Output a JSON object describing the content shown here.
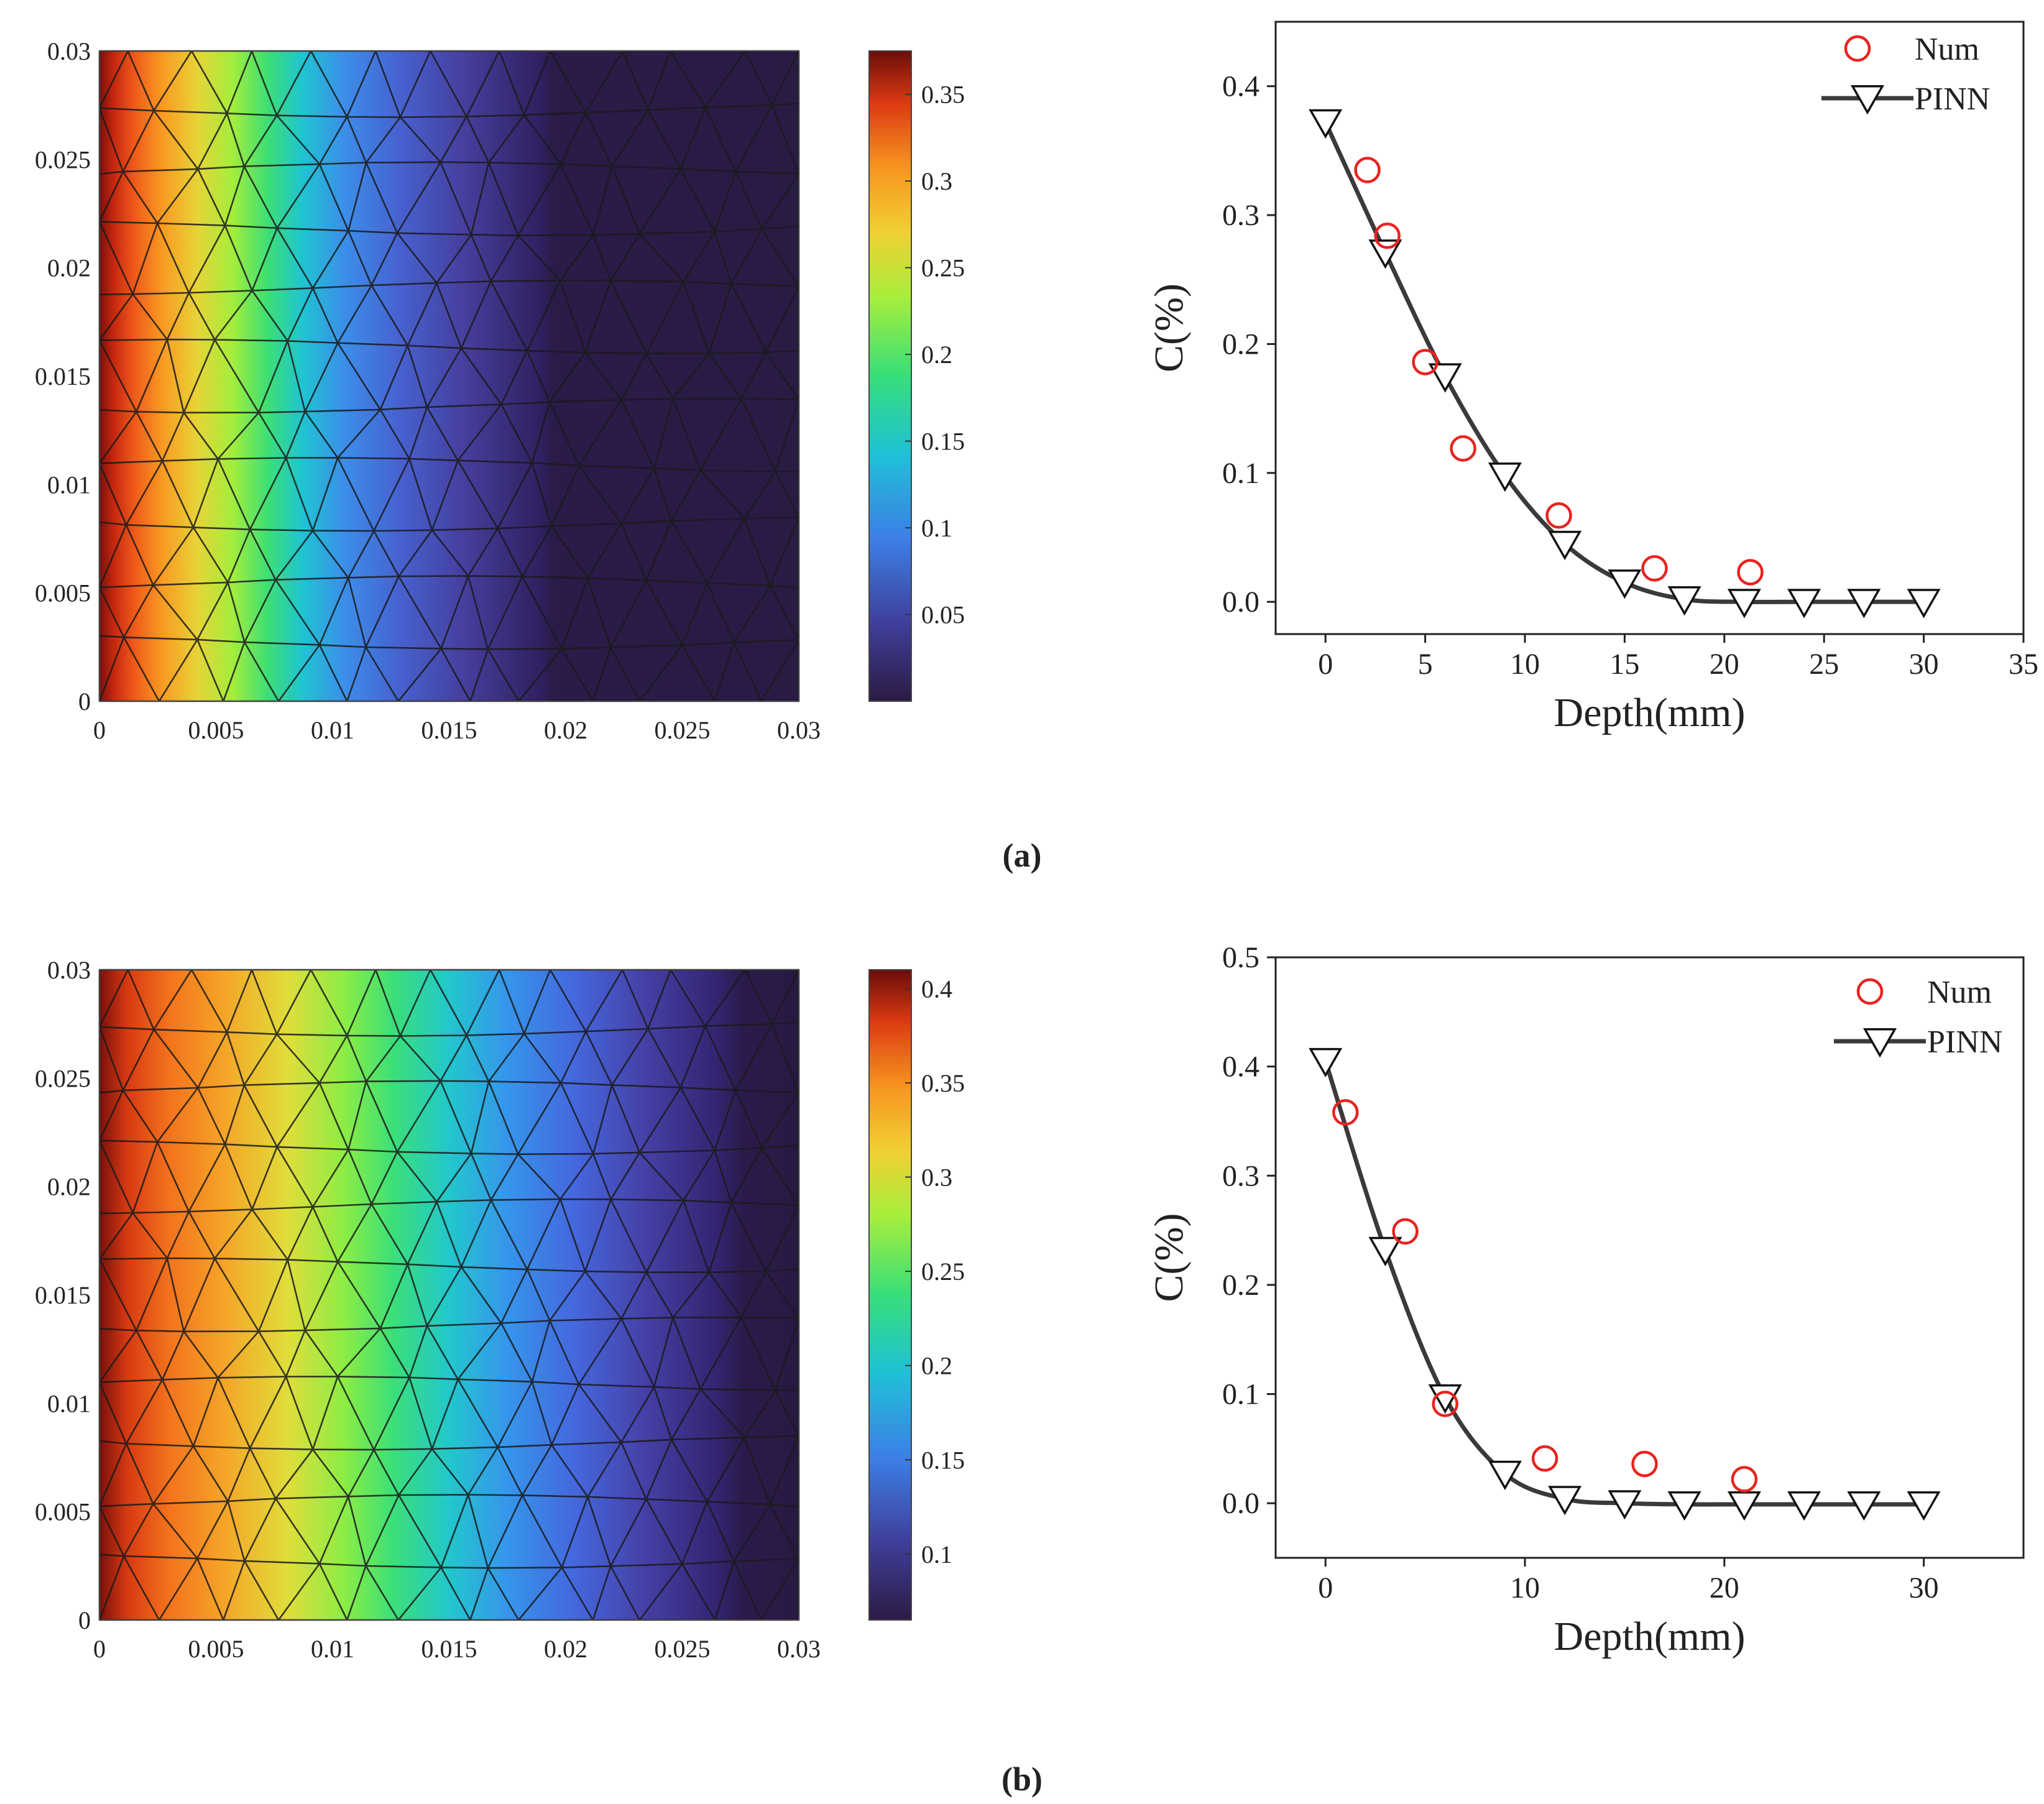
{
  "panel_labels": [
    "(a)",
    "(b)"
  ],
  "chart_data": [
    {
      "type": "heatmap",
      "panel": "a",
      "field": "left-to-right gradient, high at x=0, decaying to minimum near x=0.019",
      "xlim": [
        0,
        0.03
      ],
      "ylim": [
        0,
        0.03
      ],
      "xticks": [
        "0",
        "0.005",
        "0.01",
        "0.015",
        "0.02",
        "0.025",
        "0.03"
      ],
      "yticks": [
        "0",
        "0.005",
        "0.01",
        "0.015",
        "0.02",
        "0.025",
        "0.03"
      ],
      "colorbar": {
        "range": [
          0.0,
          0.375
        ],
        "ticks": [
          "0.05",
          "0.1",
          "0.15",
          "0.2",
          "0.25",
          "0.3",
          "0.35"
        ]
      },
      "mesh": "triangular",
      "grid": false
    },
    {
      "type": "scatter",
      "panel": "a",
      "xlabel": "Depth(mm)",
      "ylabel": "C(%)",
      "xlim": [
        -2.5,
        35
      ],
      "ylim": [
        -0.025,
        0.45
      ],
      "xticks": [
        "0",
        "5",
        "10",
        "15",
        "20",
        "25",
        "30",
        "35"
      ],
      "yticks": [
        "0.0",
        "0.1",
        "0.2",
        "0.3",
        "0.4"
      ],
      "legend": "top-right",
      "series": [
        {
          "name": "Num",
          "marker": "circle",
          "color": "#e8231f",
          "x": [
            2.1,
            3.1,
            5.0,
            6.9,
            11.7,
            16.5,
            21.3
          ],
          "y": [
            0.335,
            0.284,
            0.186,
            0.119,
            0.067,
            0.026,
            0.023
          ]
        },
        {
          "name": "PINN",
          "marker": "triangle-down",
          "color": "#333333",
          "line": true,
          "x": [
            0,
            3,
            6,
            9,
            12,
            15,
            18,
            21,
            24,
            27,
            30
          ],
          "y": [
            0.372,
            0.271,
            0.175,
            0.098,
            0.045,
            0.015,
            0.002,
            0.0,
            0.0,
            0.0,
            0.0
          ]
        }
      ],
      "grid": false
    },
    {
      "type": "heatmap",
      "panel": "b",
      "field": "left-to-right gradient, high at x=0, decaying to minimum near x=0.027",
      "xlim": [
        0,
        0.03
      ],
      "ylim": [
        0,
        0.03
      ],
      "xticks": [
        "0",
        "0.005",
        "0.01",
        "0.015",
        "0.02",
        "0.025",
        "0.03"
      ],
      "yticks": [
        "0",
        "0.005",
        "0.01",
        "0.015",
        "0.02",
        "0.025",
        "0.03"
      ],
      "colorbar": {
        "range": [
          0.065,
          0.41
        ],
        "ticks": [
          "0.1",
          "0.15",
          "0.2",
          "0.25",
          "0.3",
          "0.35",
          "0.4"
        ]
      },
      "mesh": "triangular",
      "grid": false
    },
    {
      "type": "scatter",
      "panel": "b",
      "xlabel": "Depth(mm)",
      "ylabel": "C(%)",
      "xlim": [
        -2.5,
        35
      ],
      "ylim": [
        -0.05,
        0.5
      ],
      "xticks": [
        "0",
        "10",
        "20",
        "30"
      ],
      "yticks": [
        "0.0",
        "0.1",
        "0.2",
        "0.3",
        "0.4",
        "0.5"
      ],
      "legend": "top-right",
      "series": [
        {
          "name": "Num",
          "marker": "circle",
          "color": "#e8231f",
          "x": [
            1.0,
            4.0,
            6.0,
            11.0,
            16.0,
            21.0
          ],
          "y": [
            0.358,
            0.249,
            0.091,
            0.041,
            0.036,
            0.022
          ]
        },
        {
          "name": "PINN",
          "marker": "triangle-down",
          "color": "#333333",
          "line": true,
          "x": [
            0,
            3,
            6,
            9,
            12,
            15,
            18,
            21,
            24,
            27,
            30
          ],
          "y": [
            0.405,
            0.232,
            0.097,
            0.027,
            0.004,
            0.0,
            -0.001,
            -0.001,
            -0.001,
            -0.001,
            -0.001
          ]
        }
      ],
      "grid": false
    }
  ]
}
